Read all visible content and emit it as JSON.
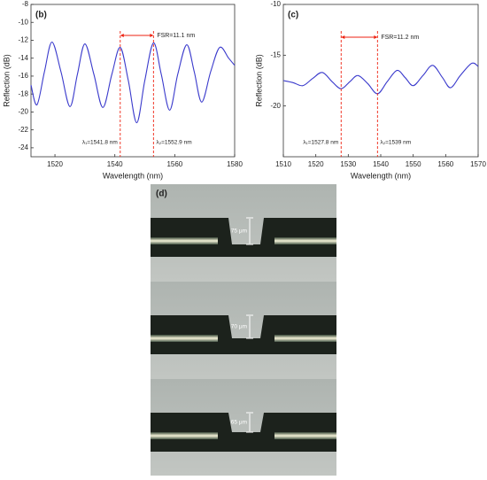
{
  "chart_data": [
    {
      "type": "line",
      "panel": "(b)",
      "xlabel": "Wavelength (nm)",
      "ylabel": "Reflection (dB)",
      "xlim": [
        1512,
        1580
      ],
      "ylim": [
        -25,
        -8
      ],
      "xticks": [
        1520,
        1540,
        1560,
        1580
      ],
      "yticks": [
        -8,
        -10,
        -12,
        -14,
        -16,
        -18,
        -20,
        -22,
        -24
      ],
      "series": [
        {
          "color": "#3a3acc",
          "x": [
            1512,
            1514,
            1516.5,
            1519,
            1522,
            1525,
            1527.5,
            1530,
            1533,
            1536,
            1539,
            1541.8,
            1544.5,
            1547.3,
            1550,
            1552.9,
            1555.5,
            1558.3,
            1561,
            1564,
            1566.5,
            1569,
            1572,
            1575,
            1578,
            1580
          ],
          "values": [
            -17,
            -19.2,
            -15.5,
            -12.2,
            -15.5,
            -19.4,
            -15.8,
            -12.4,
            -15.8,
            -19.5,
            -15.8,
            -12.8,
            -16.5,
            -21.2,
            -16.5,
            -12.3,
            -15.8,
            -19.8,
            -15.8,
            -12.5,
            -15.5,
            -18.9,
            -15.5,
            -12.8,
            -14,
            -14.8
          ]
        }
      ],
      "fsr_label": "FSR=11.1 nm",
      "markers": [
        {
          "label": "λ₁=1541.8 nm",
          "x": 1541.8
        },
        {
          "label": "λ₂=1552.9 nm",
          "x": 1552.9
        }
      ]
    },
    {
      "type": "line",
      "panel": "(c)",
      "xlabel": "Wavelength (nm)",
      "ylabel": "Reflection (dB)",
      "xlim": [
        1510,
        1570
      ],
      "ylim": [
        -25,
        -10
      ],
      "xticks": [
        1510,
        1520,
        1530,
        1540,
        1550,
        1560,
        1570
      ],
      "yticks": [
        -10,
        -15,
        -20
      ],
      "series": [
        {
          "color": "#3a3acc",
          "x": [
            1510,
            1513,
            1516,
            1519,
            1522,
            1525,
            1527.8,
            1530.5,
            1533,
            1536,
            1539,
            1542,
            1545,
            1547.5,
            1550,
            1553,
            1556,
            1559,
            1561.5,
            1564.5,
            1568,
            1570
          ],
          "values": [
            -17.5,
            -17.7,
            -18,
            -17.3,
            -16.7,
            -17.6,
            -18.3,
            -17.6,
            -17,
            -17.8,
            -18.8,
            -17.6,
            -16.5,
            -17.2,
            -18,
            -17,
            -16,
            -17.2,
            -18.2,
            -17,
            -15.8,
            -16.1
          ]
        }
      ],
      "fsr_label": "FSR=11.2 nm",
      "markers": [
        {
          "label": "λ₁=1527.8 nm",
          "x": 1527.8
        },
        {
          "label": "λ₂=1539 nm",
          "x": 1539
        }
      ]
    }
  ],
  "panel_d": {
    "label": "(d)",
    "widths": [
      "75 μm",
      "70 μm",
      "65 μm"
    ]
  }
}
